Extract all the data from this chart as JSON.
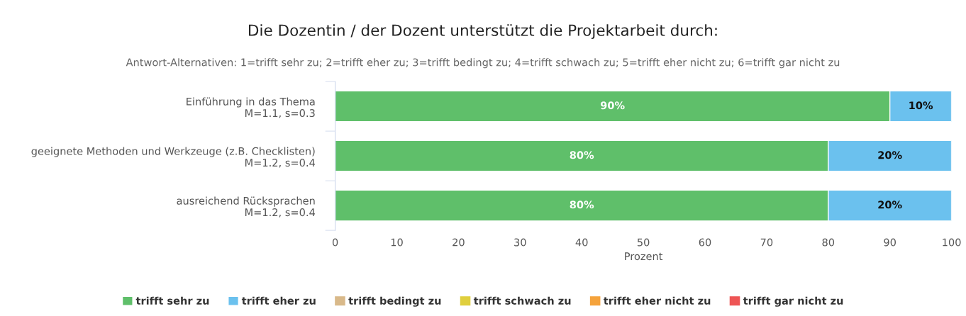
{
  "chart_data": {
    "type": "bar",
    "orientation": "horizontal",
    "stacked": true,
    "title": "Die Dozentin / der Dozent unterstützt die Projektarbeit durch:",
    "subtitle": "Antwort-Alternativen: 1=trifft sehr zu; 2=trifft eher zu; 3=trifft bedingt zu; 4=trifft schwach zu; 5=trifft eher nicht zu; 6=trifft gar nicht zu",
    "xlabel": "Prozent",
    "categories": [
      "Einführung in das Thema\nM=1.1, s=0.3",
      "geeignete Methoden und Werkzeuge (z.B. Checklisten)\nM=1.2, s=0.4",
      "ausreichend Rücksprachen\nM=1.2, s=0.4"
    ],
    "series": [
      {
        "name": "trifft sehr zu",
        "color": "#5fbf6a",
        "values": [
          90,
          80,
          80
        ],
        "value_labels": [
          "90%",
          "80%",
          "80%"
        ]
      },
      {
        "name": "trifft eher zu",
        "color": "#6bc1ee",
        "values": [
          10,
          20,
          20
        ],
        "value_labels": [
          "10%",
          "20%",
          "20%"
        ]
      },
      {
        "name": "trifft bedingt zu",
        "color": "#d9b98a",
        "values": [
          0,
          0,
          0
        ]
      },
      {
        "name": "trifft schwach zu",
        "color": "#e0cf3e",
        "values": [
          0,
          0,
          0
        ]
      },
      {
        "name": "trifft eher nicht zu",
        "color": "#f5a33c",
        "values": [
          0,
          0,
          0
        ]
      },
      {
        "name": "trifft gar nicht zu",
        "color": "#ee5555",
        "values": [
          0,
          0,
          0
        ]
      }
    ],
    "xlim": [
      0,
      100
    ],
    "xticks": [
      0,
      10,
      20,
      30,
      40,
      50,
      60,
      70,
      80,
      90,
      100
    ],
    "grid": false,
    "legend": "bottom"
  }
}
